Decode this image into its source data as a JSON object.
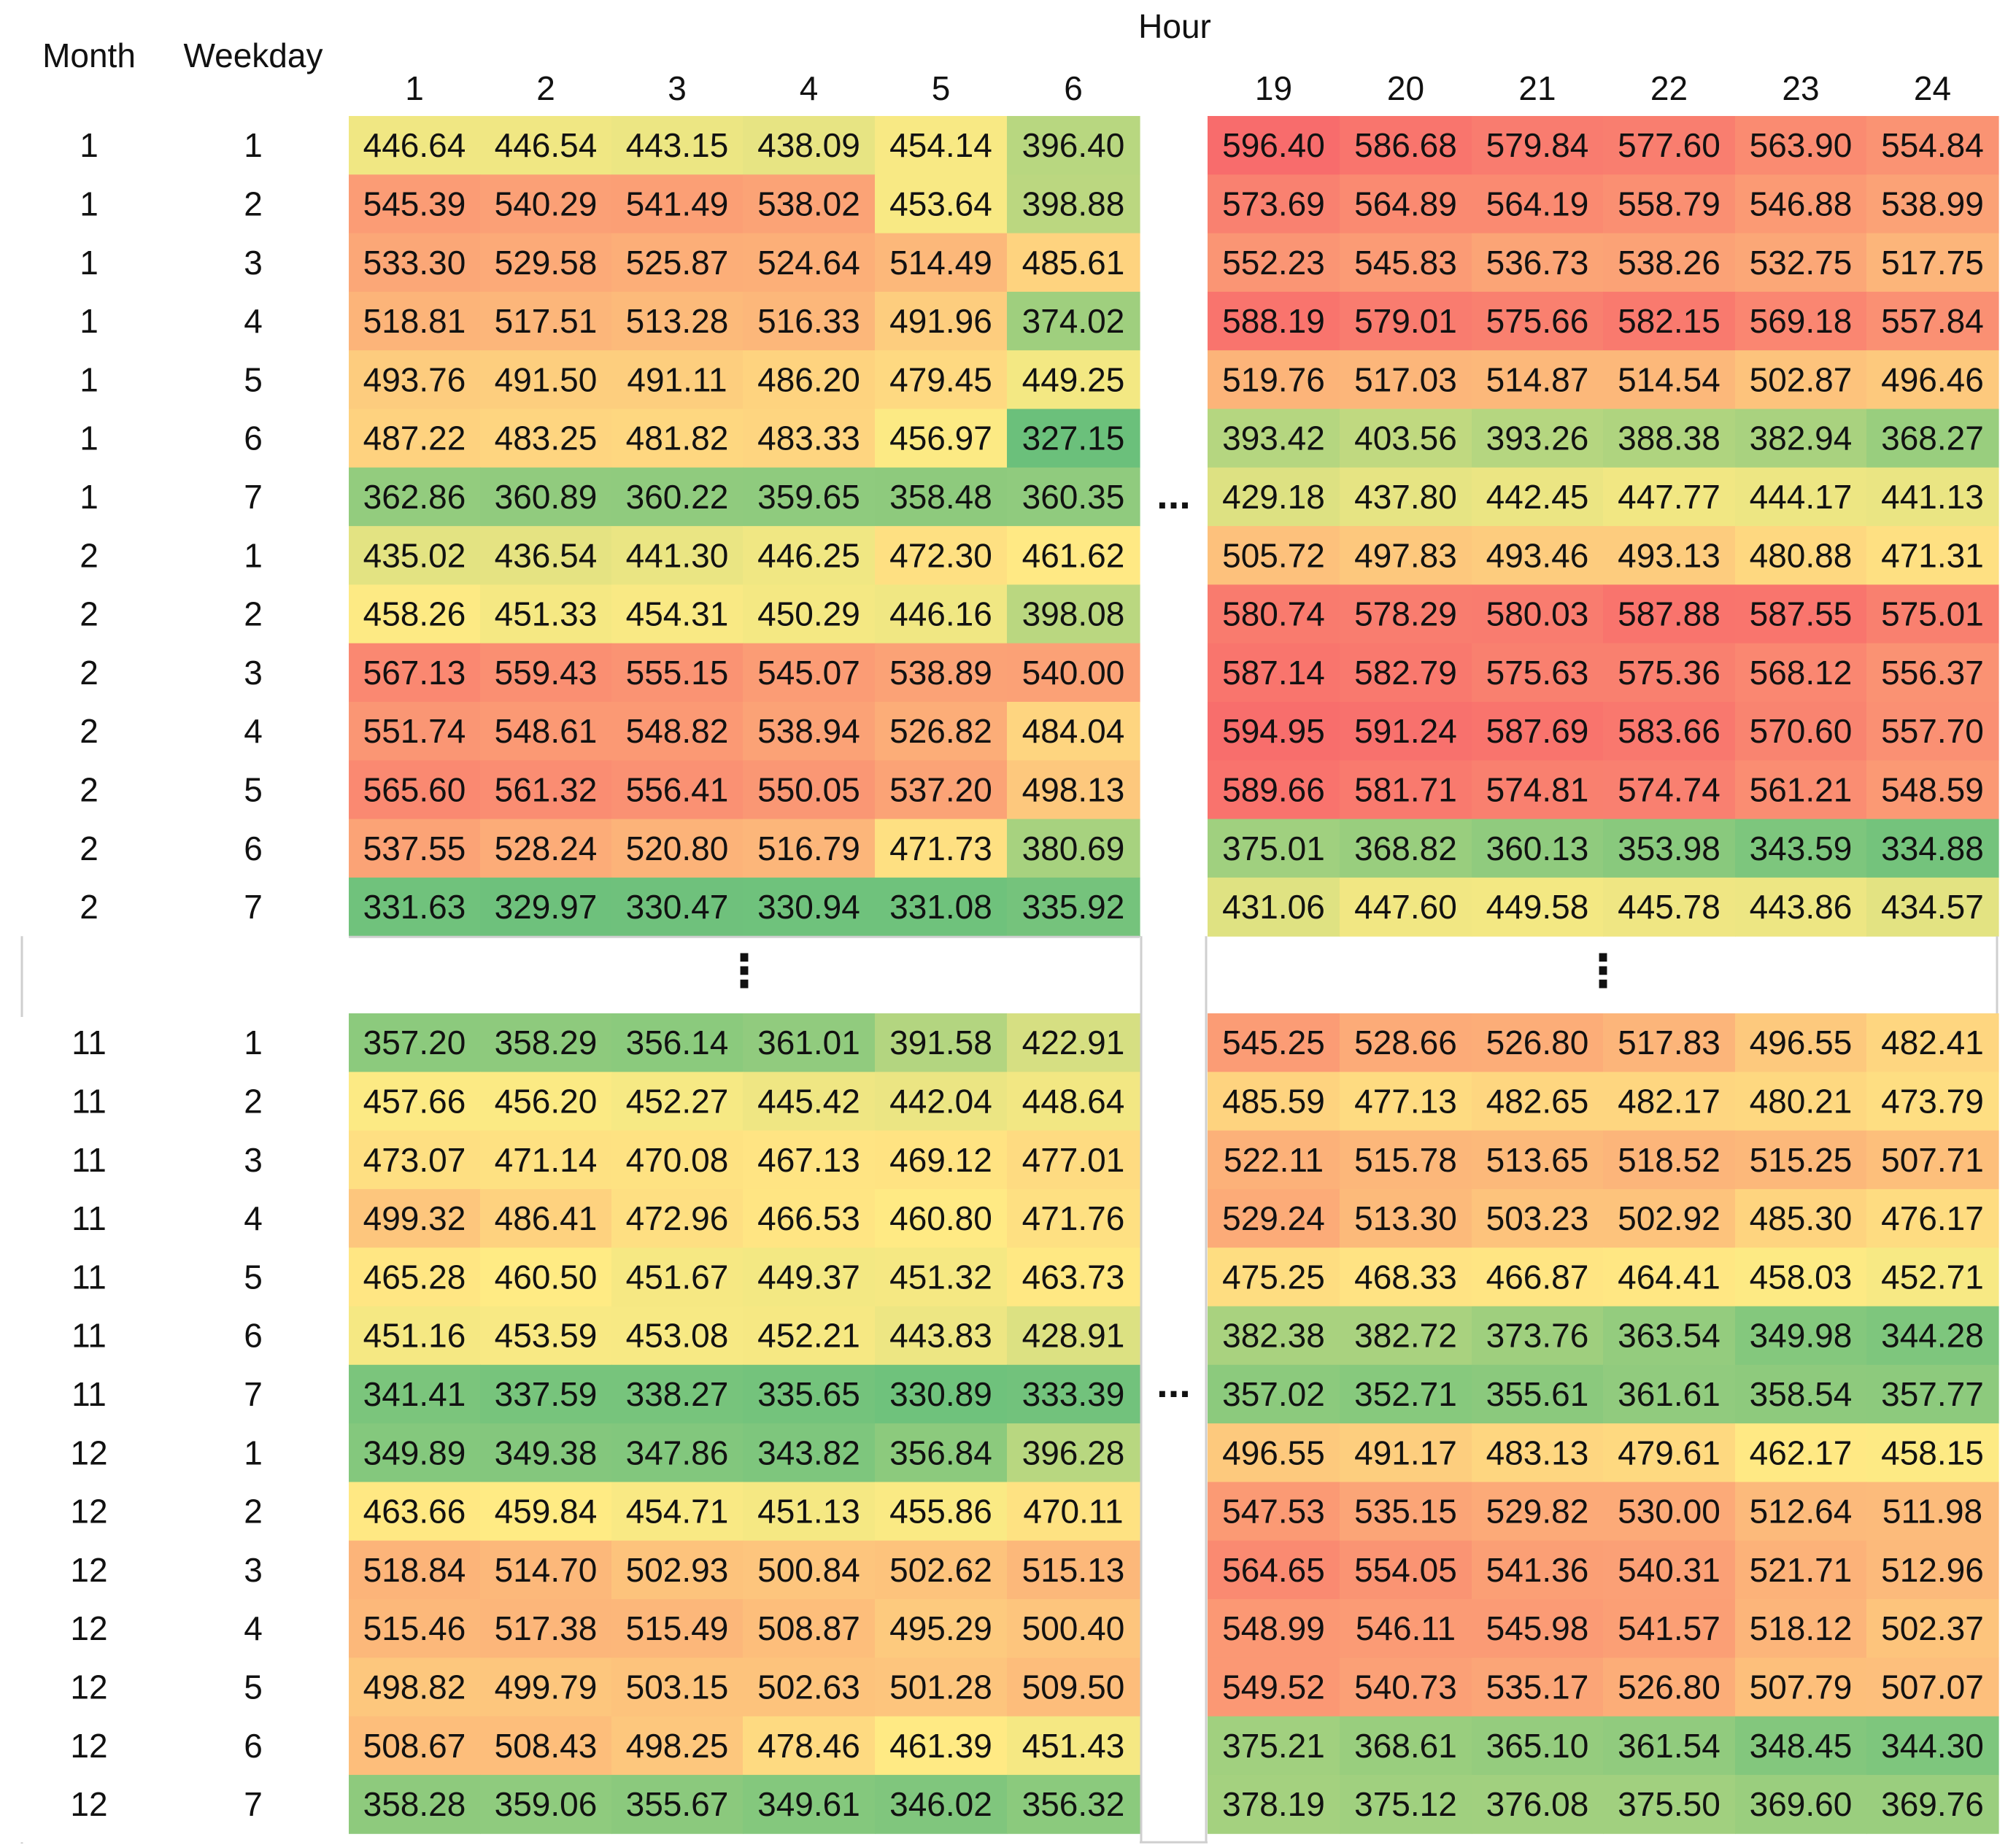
{
  "chart_data": {
    "type": "heatmap",
    "title": "",
    "header_labels": {
      "month": "Month",
      "weekday": "Weekday",
      "hour": "Hour"
    },
    "hours": [
      1,
      2,
      3,
      4,
      5,
      6,
      19,
      20,
      21,
      22,
      23,
      24
    ],
    "gap_marker": "...",
    "vertical_gap_marker": "⋮",
    "color_scale": {
      "low": "#63BE7B",
      "mid": "#FFEB84",
      "high": "#F8696B",
      "min": 320,
      "mid_value": 460,
      "max": 600
    },
    "row_blocks": [
      {
        "rows": [
          {
            "month": 1,
            "weekday": 1,
            "values": [
              446.64,
              446.54,
              443.15,
              438.09,
              454.14,
              396.4,
              596.4,
              586.68,
              579.84,
              577.6,
              563.9,
              554.84
            ]
          },
          {
            "month": 1,
            "weekday": 2,
            "values": [
              545.39,
              540.29,
              541.49,
              538.02,
              453.64,
              398.88,
              573.69,
              564.89,
              564.19,
              558.79,
              546.88,
              538.99
            ]
          },
          {
            "month": 1,
            "weekday": 3,
            "values": [
              533.3,
              529.58,
              525.87,
              524.64,
              514.49,
              485.61,
              552.23,
              545.83,
              536.73,
              538.26,
              532.75,
              517.75
            ]
          },
          {
            "month": 1,
            "weekday": 4,
            "values": [
              518.81,
              517.51,
              513.28,
              516.33,
              491.96,
              374.02,
              588.19,
              579.01,
              575.66,
              582.15,
              569.18,
              557.84
            ]
          },
          {
            "month": 1,
            "weekday": 5,
            "values": [
              493.76,
              491.5,
              491.11,
              486.2,
              479.45,
              449.25,
              519.76,
              517.03,
              514.87,
              514.54,
              502.87,
              496.46
            ]
          },
          {
            "month": 1,
            "weekday": 6,
            "values": [
              487.22,
              483.25,
              481.82,
              483.33,
              456.97,
              327.15,
              393.42,
              403.56,
              393.26,
              388.38,
              382.94,
              368.27
            ]
          },
          {
            "month": 1,
            "weekday": 7,
            "values": [
              362.86,
              360.89,
              360.22,
              359.65,
              358.48,
              360.35,
              429.18,
              437.8,
              442.45,
              447.77,
              444.17,
              441.13
            ]
          },
          {
            "month": 2,
            "weekday": 1,
            "values": [
              435.02,
              436.54,
              441.3,
              446.25,
              472.3,
              461.62,
              505.72,
              497.83,
              493.46,
              493.13,
              480.88,
              471.31
            ]
          },
          {
            "month": 2,
            "weekday": 2,
            "values": [
              458.26,
              451.33,
              454.31,
              450.29,
              446.16,
              398.08,
              580.74,
              578.29,
              580.03,
              587.88,
              587.55,
              575.01
            ]
          },
          {
            "month": 2,
            "weekday": 3,
            "values": [
              567.13,
              559.43,
              555.15,
              545.07,
              538.89,
              540.0,
              587.14,
              582.79,
              575.63,
              575.36,
              568.12,
              556.37
            ]
          },
          {
            "month": 2,
            "weekday": 4,
            "values": [
              551.74,
              548.61,
              548.82,
              538.94,
              526.82,
              484.04,
              594.95,
              591.24,
              587.69,
              583.66,
              570.6,
              557.7
            ]
          },
          {
            "month": 2,
            "weekday": 5,
            "values": [
              565.6,
              561.32,
              556.41,
              550.05,
              537.2,
              498.13,
              589.66,
              581.71,
              574.81,
              574.74,
              561.21,
              548.59
            ]
          },
          {
            "month": 2,
            "weekday": 6,
            "values": [
              537.55,
              528.24,
              520.8,
              516.79,
              471.73,
              380.69,
              375.01,
              368.82,
              360.13,
              353.98,
              343.59,
              334.88
            ]
          },
          {
            "month": 2,
            "weekday": 7,
            "values": [
              331.63,
              329.97,
              330.47,
              330.94,
              331.08,
              335.92,
              431.06,
              447.6,
              449.58,
              445.78,
              443.86,
              434.57
            ]
          }
        ]
      },
      {
        "rows": [
          {
            "month": 11,
            "weekday": 1,
            "values": [
              357.2,
              358.29,
              356.14,
              361.01,
              391.58,
              422.91,
              545.25,
              528.66,
              526.8,
              517.83,
              496.55,
              482.41
            ]
          },
          {
            "month": 11,
            "weekday": 2,
            "values": [
              457.66,
              456.2,
              452.27,
              445.42,
              442.04,
              448.64,
              485.59,
              477.13,
              482.65,
              482.17,
              480.21,
              473.79
            ]
          },
          {
            "month": 11,
            "weekday": 3,
            "values": [
              473.07,
              471.14,
              470.08,
              467.13,
              469.12,
              477.01,
              522.11,
              515.78,
              513.65,
              518.52,
              515.25,
              507.71
            ]
          },
          {
            "month": 11,
            "weekday": 4,
            "values": [
              499.32,
              486.41,
              472.96,
              466.53,
              460.8,
              471.76,
              529.24,
              513.3,
              503.23,
              502.92,
              485.3,
              476.17
            ]
          },
          {
            "month": 11,
            "weekday": 5,
            "values": [
              465.28,
              460.5,
              451.67,
              449.37,
              451.32,
              463.73,
              475.25,
              468.33,
              466.87,
              464.41,
              458.03,
              452.71
            ]
          },
          {
            "month": 11,
            "weekday": 6,
            "values": [
              451.16,
              453.59,
              453.08,
              452.21,
              443.83,
              428.91,
              382.38,
              382.72,
              373.76,
              363.54,
              349.98,
              344.28
            ]
          },
          {
            "month": 11,
            "weekday": 7,
            "values": [
              341.41,
              337.59,
              338.27,
              335.65,
              330.89,
              333.39,
              357.02,
              352.71,
              355.61,
              361.61,
              358.54,
              357.77
            ]
          },
          {
            "month": 12,
            "weekday": 1,
            "values": [
              349.89,
              349.38,
              347.86,
              343.82,
              356.84,
              396.28,
              496.55,
              491.17,
              483.13,
              479.61,
              462.17,
              458.15
            ]
          },
          {
            "month": 12,
            "weekday": 2,
            "values": [
              463.66,
              459.84,
              454.71,
              451.13,
              455.86,
              470.11,
              547.53,
              535.15,
              529.82,
              530.0,
              512.64,
              511.98
            ]
          },
          {
            "month": 12,
            "weekday": 3,
            "values": [
              518.84,
              514.7,
              502.93,
              500.84,
              502.62,
              515.13,
              564.65,
              554.05,
              541.36,
              540.31,
              521.71,
              512.96
            ]
          },
          {
            "month": 12,
            "weekday": 4,
            "values": [
              515.46,
              517.38,
              515.49,
              508.87,
              495.29,
              500.4,
              548.99,
              546.11,
              545.98,
              541.57,
              518.12,
              502.37
            ]
          },
          {
            "month": 12,
            "weekday": 5,
            "values": [
              498.82,
              499.79,
              503.15,
              502.63,
              501.28,
              509.5,
              549.52,
              540.73,
              535.17,
              526.8,
              507.79,
              507.07
            ]
          },
          {
            "month": 12,
            "weekday": 6,
            "values": [
              508.67,
              508.43,
              498.25,
              478.46,
              461.39,
              451.43,
              375.21,
              368.61,
              365.1,
              361.54,
              348.45,
              344.3
            ]
          },
          {
            "month": 12,
            "weekday": 7,
            "values": [
              358.28,
              359.06,
              355.67,
              349.61,
              346.02,
              356.32,
              378.19,
              375.12,
              376.08,
              375.5,
              369.6,
              369.76
            ]
          }
        ]
      }
    ]
  }
}
